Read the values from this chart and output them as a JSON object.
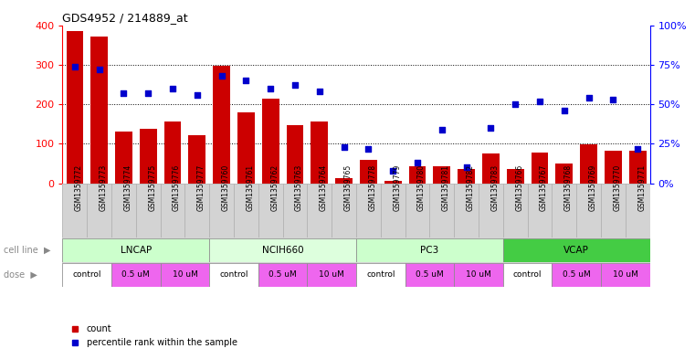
{
  "title": "GDS4952 / 214889_at",
  "samples": [
    "GSM1359772",
    "GSM1359773",
    "GSM1359774",
    "GSM1359775",
    "GSM1359776",
    "GSM1359777",
    "GSM1359760",
    "GSM1359761",
    "GSM1359762",
    "GSM1359763",
    "GSM1359764",
    "GSM1359765",
    "GSM1359778",
    "GSM1359779",
    "GSM1359780",
    "GSM1359781",
    "GSM1359782",
    "GSM1359783",
    "GSM1359766",
    "GSM1359767",
    "GSM1359768",
    "GSM1359769",
    "GSM1359770",
    "GSM1359771"
  ],
  "counts": [
    385,
    370,
    130,
    138,
    157,
    122,
    297,
    180,
    215,
    148,
    157,
    14,
    60,
    5,
    42,
    44,
    35,
    75,
    35,
    78,
    50,
    98,
    82,
    82
  ],
  "percentiles": [
    74,
    72,
    57,
    57,
    60,
    56,
    68,
    65,
    60,
    62,
    58,
    23,
    22,
    8,
    13,
    34,
    10,
    35,
    50,
    52,
    46,
    54,
    53,
    22
  ],
  "cell_lines": [
    {
      "name": "LNCAP",
      "start": 0,
      "end": 6,
      "color": "#ccffcc"
    },
    {
      "name": "NCIH660",
      "start": 6,
      "end": 12,
      "color": "#ddffdd"
    },
    {
      "name": "PC3",
      "start": 12,
      "end": 18,
      "color": "#ccffcc"
    },
    {
      "name": "VCAP",
      "start": 18,
      "end": 24,
      "color": "#44cc44"
    }
  ],
  "doses": [
    {
      "label": "control",
      "start": 0,
      "end": 2,
      "bg": "#ffffff"
    },
    {
      "label": "0.5 uM",
      "start": 2,
      "end": 4,
      "bg": "#ee66ee"
    },
    {
      "label": "10 uM",
      "start": 4,
      "end": 6,
      "bg": "#ee66ee"
    },
    {
      "label": "control",
      "start": 6,
      "end": 8,
      "bg": "#ffffff"
    },
    {
      "label": "0.5 uM",
      "start": 8,
      "end": 10,
      "bg": "#ee66ee"
    },
    {
      "label": "10 uM",
      "start": 10,
      "end": 12,
      "bg": "#ee66ee"
    },
    {
      "label": "control",
      "start": 12,
      "end": 14,
      "bg": "#ffffff"
    },
    {
      "label": "0.5 uM",
      "start": 14,
      "end": 16,
      "bg": "#ee66ee"
    },
    {
      "label": "10 uM",
      "start": 16,
      "end": 18,
      "bg": "#ee66ee"
    },
    {
      "label": "control",
      "start": 18,
      "end": 20,
      "bg": "#ffffff"
    },
    {
      "label": "0.5 uM",
      "start": 20,
      "end": 22,
      "bg": "#ee66ee"
    },
    {
      "label": "10 uM",
      "start": 22,
      "end": 24,
      "bg": "#ee66ee"
    }
  ],
  "bar_color": "#cc0000",
  "dot_color": "#0000cc",
  "ylim_left": [
    0,
    400
  ],
  "yticks_left": [
    0,
    100,
    200,
    300,
    400
  ],
  "yticks_right": [
    0,
    25,
    50,
    75,
    100
  ],
  "ytick_labels_right": [
    "0%",
    "25%",
    "50%",
    "75%",
    "100%"
  ],
  "plot_bg": "#ffffff",
  "label_row_bg": "#d3d3d3",
  "grid_color": "#000000",
  "left_label_color": "#888888"
}
